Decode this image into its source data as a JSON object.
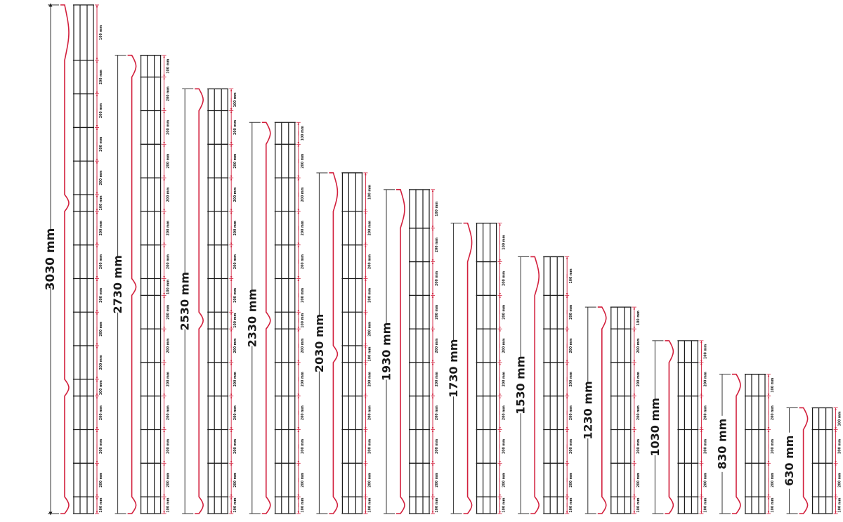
{
  "colors": {
    "mesh": "#1a1a1a",
    "profile": "#d21f3c",
    "dimension_arrow": "#d21f3c",
    "dimension_line": "#333333"
  },
  "panels": [
    {
      "height_label": "3030 mm",
      "height_mm": 3030,
      "spacing_labels": [
        "100 mm",
        "200 mm",
        "200 mm",
        "200 mm",
        "100 mm",
        "200 mm",
        "200 mm",
        "200 mm",
        "200 mm",
        "200 mm",
        "100 mm",
        "200 mm",
        "200 mm",
        "200 mm",
        "200 mm",
        "100 mm"
      ]
    },
    {
      "height_label": "2730 mm",
      "height_mm": 2730,
      "spacing_labels": [
        "100 mm",
        "200 mm",
        "200 mm",
        "200 mm",
        "200 mm",
        "200 mm",
        "200 mm",
        "100 mm",
        "200 mm",
        "200 mm",
        "200 mm",
        "200 mm",
        "200 mm",
        "200 mm",
        "100 mm"
      ]
    },
    {
      "height_label": "2530 mm",
      "height_mm": 2530,
      "spacing_labels": [
        "100 mm",
        "200 mm",
        "200 mm",
        "200 mm",
        "200 mm",
        "200 mm",
        "100 mm",
        "200 mm",
        "200 mm",
        "200 mm",
        "200 mm",
        "200 mm",
        "200 mm",
        "100 mm"
      ]
    },
    {
      "height_label": "2330 mm",
      "height_mm": 2330,
      "spacing_labels": [
        "100 mm",
        "200 mm",
        "200 mm",
        "200 mm",
        "200 mm",
        "200 mm",
        "100 mm",
        "200 mm",
        "200 mm",
        "200 mm",
        "200 mm",
        "200 mm",
        "100 mm"
      ]
    },
    {
      "height_label": "2030 mm",
      "height_mm": 2030,
      "spacing_labels": [
        "100 mm",
        "200 mm",
        "200 mm",
        "200 mm",
        "200 mm",
        "100 mm",
        "200 mm",
        "200 mm",
        "200 mm",
        "200 mm",
        "100 mm"
      ]
    },
    {
      "height_label": "1930 mm",
      "height_mm": 1930,
      "spacing_labels": [
        "100 mm",
        "200 mm",
        "200 mm",
        "200 mm",
        "200 mm",
        "200 mm",
        "200 mm",
        "200 mm",
        "200 mm",
        "100 mm"
      ]
    },
    {
      "height_label": "1730 mm",
      "height_mm": 1730,
      "spacing_labels": [
        "100 mm",
        "200 mm",
        "200 mm",
        "200 mm",
        "200 mm",
        "200 mm",
        "200 mm",
        "200 mm",
        "100 mm"
      ]
    },
    {
      "height_label": "1530 mm",
      "height_mm": 1530,
      "spacing_labels": [
        "100 mm",
        "200 mm",
        "200 mm",
        "200 mm",
        "200 mm",
        "200 mm",
        "200 mm",
        "100 mm"
      ]
    },
    {
      "height_label": "1230 mm",
      "height_mm": 1230,
      "spacing_labels": [
        "100 mm",
        "200 mm",
        "200 mm",
        "200 mm",
        "200 mm",
        "200 mm",
        "100 mm"
      ]
    },
    {
      "height_label": "1030 mm",
      "height_mm": 1030,
      "spacing_labels": [
        "100 mm",
        "200 mm",
        "200 mm",
        "200 mm",
        "200 mm",
        "100 mm"
      ]
    },
    {
      "height_label": "830 mm",
      "height_mm": 830,
      "spacing_labels": [
        "100 mm",
        "200 mm",
        "200 mm",
        "200 mm",
        "100 mm"
      ]
    },
    {
      "height_label": "630 mm",
      "height_mm": 630,
      "spacing_labels": [
        "100 mm",
        "200 mm",
        "200 mm",
        "100 mm"
      ]
    }
  ]
}
